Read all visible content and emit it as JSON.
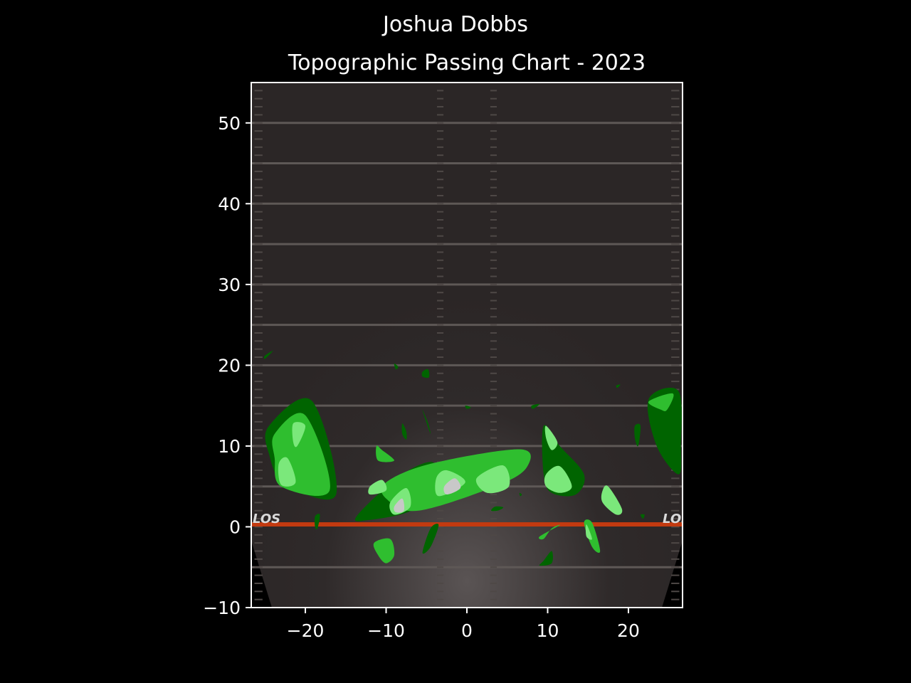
{
  "chart_data": {
    "type": "heatmap",
    "title": "Joshua Dobbs",
    "subtitle": "Topographic Passing Chart - 2023",
    "xlabel": "",
    "ylabel": "",
    "xlim": [
      -26.7,
      26.7
    ],
    "ylim": [
      -10,
      55
    ],
    "x_ticks": [
      -20,
      -10,
      0,
      10,
      20
    ],
    "x_tick_labels": [
      "−20",
      "−10",
      "0",
      "10",
      "20"
    ],
    "y_ticks": [
      -10,
      0,
      10,
      20,
      30,
      40,
      50
    ],
    "y_tick_labels": [
      "−10",
      "0",
      "10",
      "20",
      "30",
      "40",
      "50"
    ],
    "field_yard_lines": [
      -5,
      5,
      10,
      15,
      20,
      25,
      30,
      35,
      40,
      45,
      50
    ],
    "line_of_scrimmage": {
      "y": 0.3,
      "label": "LOS"
    },
    "grid": false,
    "colors": {
      "background": "#000000",
      "field": "#2b2626",
      "yard_line": "#5e5856",
      "los_line": "#c23a10",
      "level_1": "#006400",
      "level_2": "#2fbe2f",
      "level_3": "#7be87b",
      "level_4": "#c8c8c8"
    },
    "contours": [
      {
        "level": 1,
        "points": [
          [
            -24.5,
            12.5
          ],
          [
            -19.2,
            15.6
          ],
          [
            -16.2,
            4.0
          ],
          [
            -22.5,
            5.3
          ],
          [
            -24.5,
            9.0
          ]
        ]
      },
      {
        "level": 2,
        "points": [
          [
            -23.8,
            11.5
          ],
          [
            -20.0,
            13.8
          ],
          [
            -17.0,
            4.5
          ],
          [
            -23.0,
            5.0
          ],
          [
            -23.8,
            8.5
          ]
        ]
      },
      {
        "level": 3,
        "points": [
          [
            -21.5,
            12.8
          ],
          [
            -20.0,
            12.5
          ],
          [
            -21.0,
            10.0
          ],
          [
            -21.5,
            10.5
          ]
        ]
      },
      {
        "level": 3,
        "points": [
          [
            -23.3,
            7.8
          ],
          [
            -22.2,
            8.5
          ],
          [
            -21.2,
            5.5
          ],
          [
            -23.0,
            5.2
          ]
        ]
      },
      {
        "level": 1,
        "points": [
          [
            -18.8,
            1.3
          ],
          [
            -18.2,
            1.5
          ],
          [
            -18.5,
            -0.2
          ],
          [
            -18.8,
            0.0
          ]
        ]
      },
      {
        "level": 1,
        "points": [
          [
            -13.5,
            1.5
          ],
          [
            -8.0,
            6.5
          ],
          [
            -4.0,
            7.8
          ],
          [
            -6.0,
            2.5
          ],
          [
            -12.5,
            0.8
          ]
        ]
      },
      {
        "level": 2,
        "points": [
          [
            -10.0,
            5.5
          ],
          [
            -4.5,
            7.8
          ],
          [
            6.5,
            9.6
          ],
          [
            7.5,
            7.5
          ],
          [
            4.0,
            5.2
          ],
          [
            -6.0,
            2.0
          ],
          [
            -10.0,
            3.5
          ]
        ]
      },
      {
        "level": 3,
        "points": [
          [
            -12.0,
            5.0
          ],
          [
            -10.5,
            5.8
          ],
          [
            -10.0,
            4.5
          ],
          [
            -12.0,
            4.0
          ]
        ]
      },
      {
        "level": 3,
        "points": [
          [
            -9.5,
            3.0
          ],
          [
            -7.5,
            4.8
          ],
          [
            -7.0,
            2.5
          ],
          [
            -9.0,
            1.5
          ]
        ]
      },
      {
        "level": 3,
        "points": [
          [
            -3.8,
            6.0
          ],
          [
            -2.5,
            7.0
          ],
          [
            -0.2,
            5.5
          ],
          [
            -3.5,
            3.8
          ]
        ]
      },
      {
        "level": 3,
        "points": [
          [
            1.2,
            6.0
          ],
          [
            4.5,
            7.6
          ],
          [
            5.2,
            5.0
          ],
          [
            2.5,
            4.2
          ]
        ]
      },
      {
        "level": 4,
        "points": [
          [
            -2.8,
            5.0
          ],
          [
            -1.5,
            6.0
          ],
          [
            -0.8,
            4.8
          ],
          [
            -2.5,
            4.0
          ]
        ]
      },
      {
        "level": 4,
        "points": [
          [
            -9.0,
            2.5
          ],
          [
            -8.0,
            3.5
          ],
          [
            -7.8,
            2.0
          ],
          [
            -8.8,
            1.8
          ]
        ]
      },
      {
        "level": 2,
        "points": [
          [
            -11.2,
            10.0
          ],
          [
            -10.5,
            9.5
          ],
          [
            -9.0,
            8.2
          ],
          [
            -11.0,
            8.2
          ]
        ]
      },
      {
        "level": 2,
        "points": [
          [
            -11.5,
            -2.0
          ],
          [
            -9.5,
            -1.5
          ],
          [
            -9.0,
            -3.5
          ],
          [
            -10.0,
            -4.5
          ],
          [
            -11.0,
            -3.5
          ]
        ]
      },
      {
        "level": 1,
        "points": [
          [
            -8.0,
            12.8
          ],
          [
            -7.5,
            11.8
          ],
          [
            -7.5,
            10.8
          ],
          [
            -8.0,
            11.5
          ]
        ]
      },
      {
        "level": 1,
        "points": [
          [
            -5.5,
            14.5
          ],
          [
            -4.8,
            12.8
          ],
          [
            -4.5,
            11.5
          ],
          [
            -5.2,
            13.5
          ]
        ]
      },
      {
        "level": 1,
        "points": [
          [
            -5.5,
            19.2
          ],
          [
            -4.8,
            19.5
          ],
          [
            -4.7,
            18.5
          ],
          [
            -5.5,
            18.6
          ]
        ]
      },
      {
        "level": 1,
        "points": [
          [
            -9.0,
            20.2
          ],
          [
            -8.5,
            19.8
          ],
          [
            -8.8,
            19.5
          ]
        ]
      },
      {
        "level": 1,
        "points": [
          [
            -25.0,
            21.2
          ],
          [
            -24.0,
            21.8
          ],
          [
            -25.0,
            20.8
          ]
        ]
      },
      {
        "level": 1,
        "points": [
          [
            -0.2,
            15.0
          ],
          [
            0.5,
            14.8
          ],
          [
            0.0,
            14.6
          ]
        ]
      },
      {
        "level": 1,
        "points": [
          [
            -4.5,
            -0.2
          ],
          [
            -3.5,
            0.2
          ],
          [
            -4.5,
            -2.5
          ],
          [
            -5.5,
            -3.2
          ]
        ]
      },
      {
        "level": 1,
        "points": [
          [
            3.5,
            2.5
          ],
          [
            4.5,
            2.4
          ],
          [
            3.8,
            2.0
          ],
          [
            3.0,
            2.0
          ]
        ]
      },
      {
        "level": 1,
        "points": [
          [
            6.5,
            4.2
          ],
          [
            6.8,
            4.0
          ],
          [
            6.6,
            3.8
          ]
        ]
      },
      {
        "level": 1,
        "points": [
          [
            8.0,
            15.0
          ],
          [
            9.0,
            15.2
          ],
          [
            8.2,
            14.6
          ]
        ]
      },
      {
        "level": 1,
        "points": [
          [
            9.5,
            12.5
          ],
          [
            11.5,
            10.0
          ],
          [
            14.5,
            6.5
          ],
          [
            13.5,
            4.0
          ],
          [
            10.5,
            4.2
          ],
          [
            9.5,
            6.5
          ]
        ]
      },
      {
        "level": 3,
        "points": [
          [
            9.8,
            12.5
          ],
          [
            11.2,
            10.5
          ],
          [
            10.5,
            9.5
          ],
          [
            9.8,
            11.0
          ]
        ]
      },
      {
        "level": 3,
        "points": [
          [
            9.8,
            6.5
          ],
          [
            11.5,
            7.5
          ],
          [
            13.0,
            5.0
          ],
          [
            11.5,
            4.2
          ],
          [
            9.8,
            5.0
          ]
        ]
      },
      {
        "level": 2,
        "points": [
          [
            9.0,
            -1.2
          ],
          [
            11.5,
            0.2
          ],
          [
            10.5,
            -0.2
          ],
          [
            9.5,
            -1.5
          ]
        ]
      },
      {
        "level": 1,
        "points": [
          [
            9.5,
            -4.2
          ],
          [
            10.5,
            -3.0
          ],
          [
            10.5,
            -4.5
          ],
          [
            9.0,
            -4.8
          ]
        ]
      },
      {
        "level": 2,
        "points": [
          [
            14.5,
            0.5
          ],
          [
            15.5,
            0.5
          ],
          [
            16.5,
            -3.0
          ],
          [
            15.5,
            -2.5
          ]
        ]
      },
      {
        "level": 3,
        "points": [
          [
            14.8,
            0.3
          ],
          [
            15.5,
            -1.5
          ],
          [
            14.8,
            -1.2
          ]
        ]
      },
      {
        "level": 3,
        "points": [
          [
            16.8,
            4.5
          ],
          [
            17.5,
            5.0
          ],
          [
            19.2,
            2.2
          ],
          [
            18.5,
            1.5
          ],
          [
            16.8,
            3.0
          ]
        ]
      },
      {
        "level": 1,
        "points": [
          [
            18.5,
            17.5
          ],
          [
            19.0,
            17.6
          ],
          [
            18.6,
            17.2
          ]
        ]
      },
      {
        "level": 1,
        "points": [
          [
            20.8,
            12.5
          ],
          [
            21.5,
            12.5
          ],
          [
            21.2,
            10.0
          ],
          [
            20.8,
            11.0
          ]
        ]
      },
      {
        "level": 1,
        "points": [
          [
            21.5,
            1.5
          ],
          [
            22.0,
            1.5
          ],
          [
            21.8,
            1.0
          ]
        ]
      },
      {
        "level": 1,
        "points": [
          [
            22.5,
            15.8
          ],
          [
            26.2,
            16.8
          ],
          [
            26.5,
            10.0
          ],
          [
            26.2,
            6.5
          ],
          [
            23.5,
            10.0
          ]
        ]
      },
      {
        "level": 2,
        "points": [
          [
            22.5,
            15.5
          ],
          [
            25.5,
            16.5
          ],
          [
            24.8,
            14.5
          ],
          [
            24.0,
            14.5
          ]
        ]
      }
    ]
  }
}
